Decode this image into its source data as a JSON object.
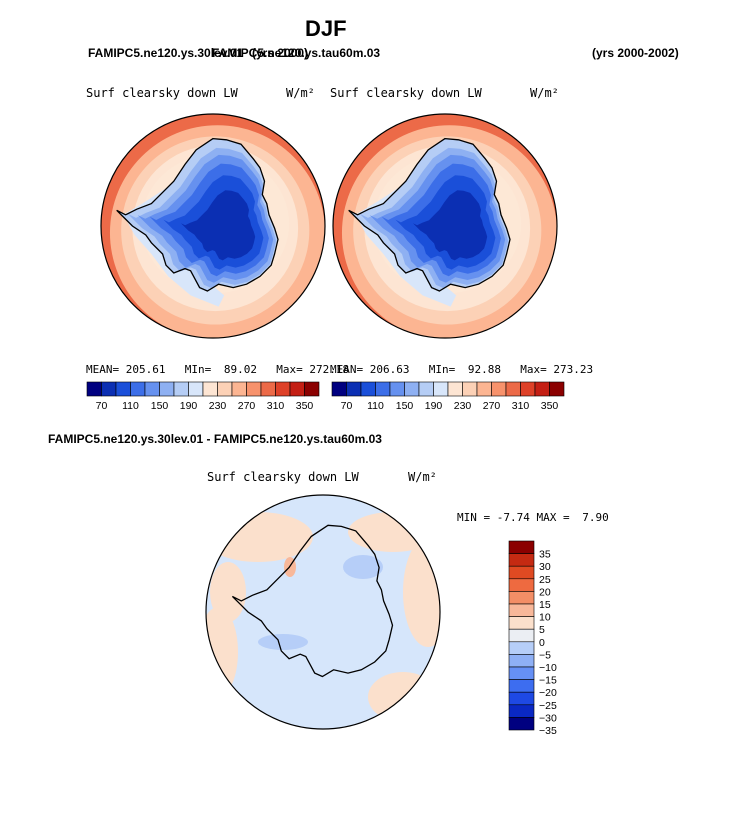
{
  "page": {
    "title": "DJF",
    "case_header_overlap": [
      "FAMIPC5.ne120.ys.30lev.01",
      "FAMIPC5.ne120.ys.tau60m.03",
      "(yrs 2000)"
    ],
    "years_label": "(yrs 2000-2002)",
    "diff_title": "FAMIPC5.ne120.ys.30lev.01 - FAMIPC5.ne120.ys.tau60m.03"
  },
  "colors": {
    "seq": [
      "#000080",
      "#0b2fb3",
      "#1a4fd9",
      "#3c6ee8",
      "#6691ef",
      "#8eb0f2",
      "#b5cdf5",
      "#d8e6fa",
      "#fde5d3",
      "#fcd1b6",
      "#fcb592",
      "#f7926c",
      "#ec6a48",
      "#de4128",
      "#c41f14",
      "#8b0000"
    ],
    "diff": [
      "#000080",
      "#0a28c4",
      "#1e49e4",
      "#3d6df0",
      "#6690f5",
      "#8fb0f5",
      "#b6cef8",
      "#ebeef3",
      "#fbe0cc",
      "#f8b89a",
      "#f38e66",
      "#ee6a40",
      "#e04a22",
      "#c52a12",
      "#8b0000"
    ]
  },
  "chart_data": [
    {
      "type": "heatmap",
      "projection": "south-polar stereographic",
      "title": "Surf clearsky down LW",
      "units": "W/m²",
      "stats": {
        "mean_label": "MEAN=",
        "mean": "205.61",
        "min_label": "MIn=",
        "min": "89.02",
        "max_label": "Max=",
        "max": "272.18"
      },
      "colorbar": {
        "labels": [
          "70",
          "110",
          "150",
          "190",
          "230",
          "270",
          "310",
          "350"
        ]
      }
    },
    {
      "type": "heatmap",
      "projection": "south-polar stereographic",
      "title": "Surf clearsky down LW",
      "units": "W/m²",
      "stats": {
        "mean_label": "MEAN=",
        "mean": "206.63",
        "min_label": "MIn=",
        "min": "92.88",
        "max_label": "Max=",
        "max": "273.23"
      },
      "colorbar": {
        "labels": [
          "70",
          "110",
          "150",
          "190",
          "230",
          "270",
          "310",
          "350"
        ]
      }
    },
    {
      "type": "heatmap",
      "projection": "south-polar stereographic",
      "title": "Surf clearsky down LW",
      "units": "W/m²",
      "stats": {
        "min_label": "MIN =",
        "min": "-7.74",
        "max_label": "MAX =",
        "max": "7.90"
      },
      "colorbar": {
        "labels": [
          "35",
          "30",
          "25",
          "20",
          "15",
          "10",
          "5",
          "0",
          "−5",
          "−10",
          "−15",
          "−20",
          "−25",
          "−30",
          "−35"
        ]
      }
    }
  ]
}
